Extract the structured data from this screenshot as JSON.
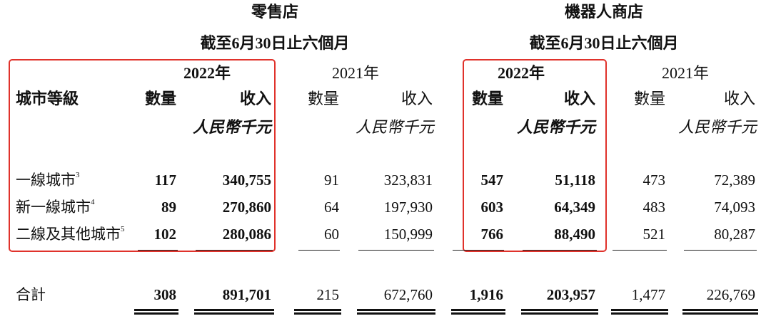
{
  "groups": [
    {
      "title": "零售店",
      "subtitle": "截至6月30日止六個月"
    },
    {
      "title": "機器人商店",
      "subtitle": "截至6月30日止六個月"
    }
  ],
  "years": {
    "current": "2022年",
    "previous": "2021年"
  },
  "columns": {
    "tier": "城市等級",
    "count": "數量",
    "revenue": "收入",
    "unit": "人民幣千元"
  },
  "rows": [
    {
      "label": "一線城市",
      "note": "3",
      "retail_2022_count": "117",
      "retail_2022_rev": "340,755",
      "retail_2021_count": "91",
      "retail_2021_rev": "323,831",
      "robot_2022_count": "547",
      "robot_2022_rev": "51,118",
      "robot_2021_count": "473",
      "robot_2021_rev": "72,389"
    },
    {
      "label": "新一線城市",
      "note": "4",
      "retail_2022_count": "89",
      "retail_2022_rev": "270,860",
      "retail_2021_count": "64",
      "retail_2021_rev": "197,930",
      "robot_2022_count": "603",
      "robot_2022_rev": "64,349",
      "robot_2021_count": "483",
      "robot_2021_rev": "74,093"
    },
    {
      "label": "二線及其他城市",
      "note": "5",
      "retail_2022_count": "102",
      "retail_2022_rev": "280,086",
      "retail_2021_count": "60",
      "retail_2021_rev": "150,999",
      "robot_2022_count": "766",
      "robot_2022_rev": "88,490",
      "robot_2021_count": "521",
      "robot_2021_rev": "80,287"
    }
  ],
  "total": {
    "label": "合計",
    "retail_2022_count": "308",
    "retail_2022_rev": "891,701",
    "retail_2021_count": "215",
    "retail_2021_rev": "672,760",
    "robot_2022_count": "1,916",
    "robot_2022_rev": "203,957",
    "robot_2021_count": "1,477",
    "robot_2021_rev": "226,769"
  },
  "colors": {
    "highlight_border": "#e0322b",
    "text": "#111111",
    "background": "#ffffff"
  }
}
